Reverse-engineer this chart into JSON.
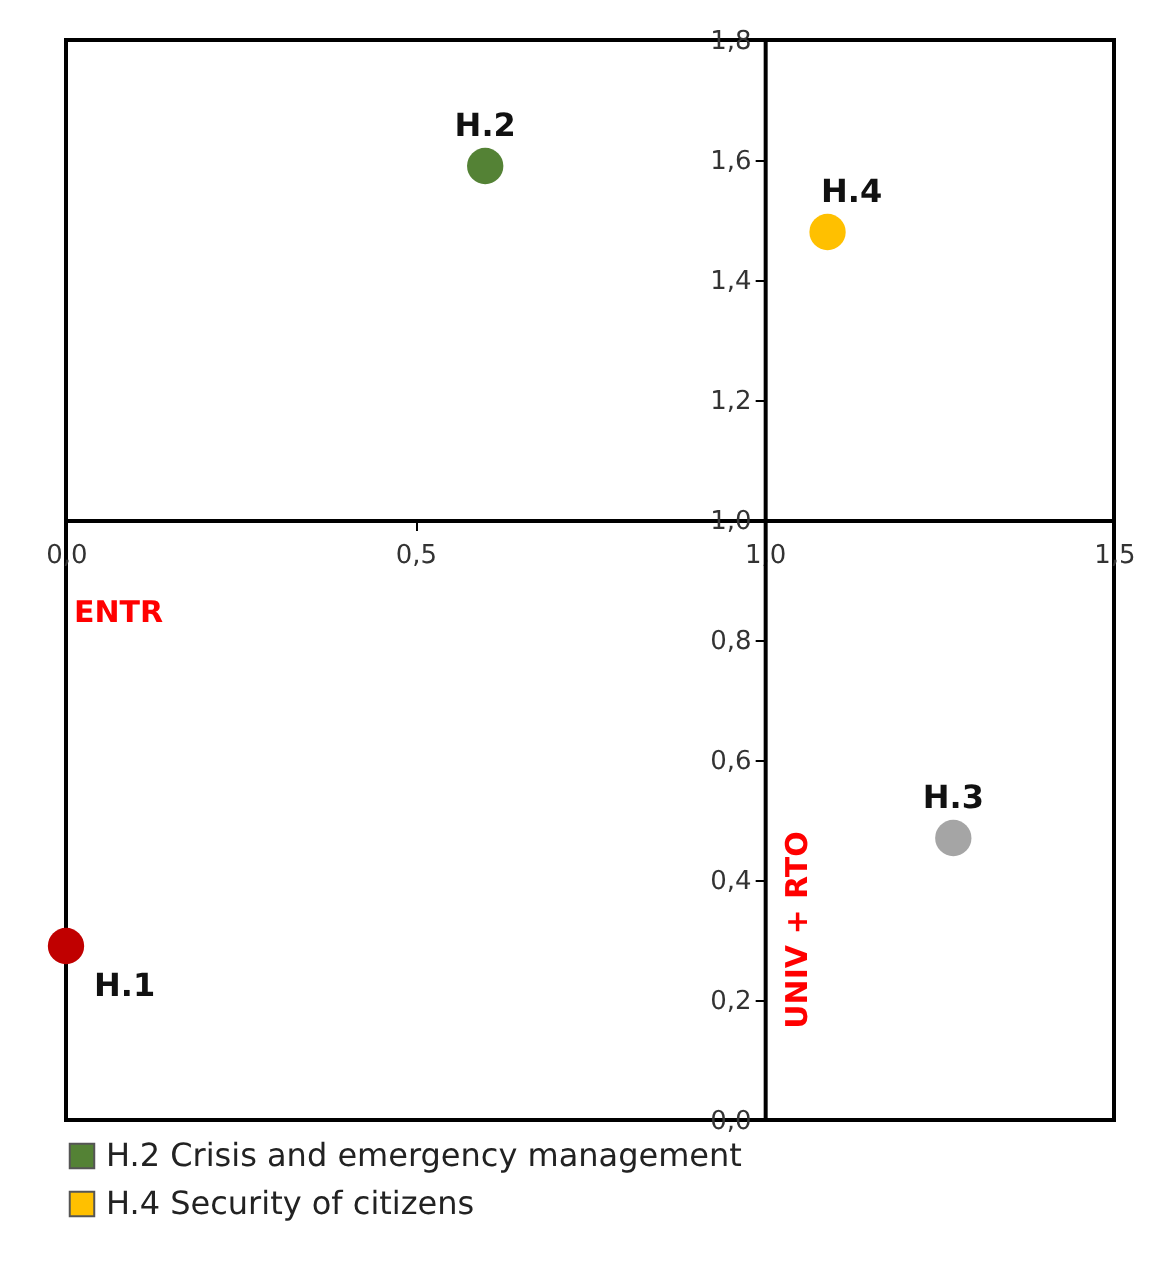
{
  "chart_data": {
    "type": "scatter",
    "marker": "circle",
    "legend": "bottom",
    "grid": false,
    "series": [
      {
        "color": "#c00000",
        "x": [
          0.0
        ],
        "values": [
          0.29
        ]
      },
      {
        "name": "H.2 Crisis and emergency management",
        "color": "#548235",
        "x": [
          0.6
        ],
        "values": [
          1.59
        ]
      },
      {
        "color": "#a5a5a5",
        "x": [
          1.27
        ],
        "values": [
          0.47
        ]
      },
      {
        "name": "H.4 Security of citizens",
        "color": "#ffc000",
        "x": [
          1.09
        ],
        "values": [
          1.48
        ]
      }
    ],
    "xlim": [
      0,
      1.5
    ],
    "xticks": [
      {
        "value": 0,
        "label": "0,0"
      },
      {
        "value": 0.5,
        "label": "0,5"
      },
      {
        "value": 1,
        "label": "1,0"
      },
      {
        "value": 1.5,
        "label": "1,5"
      }
    ],
    "ylim": [
      0,
      1.8
    ],
    "yticks": [
      {
        "value": 0,
        "label": "0,0"
      },
      {
        "value": 0.2,
        "label": "0,2"
      },
      {
        "value": 0.4,
        "label": "0,4"
      },
      {
        "value": 0.6,
        "label": "0,6"
      },
      {
        "value": 0.8,
        "label": "0,8"
      },
      {
        "value": 1,
        "label": "1,0"
      },
      {
        "value": 1.2,
        "label": "1,2"
      },
      {
        "value": 1.4,
        "label": "1,4"
      },
      {
        "value": 1.6,
        "label": "1,6"
      },
      {
        "value": 1.8,
        "label": "1,8"
      }
    ],
    "annotations": [
      {
        "text": "H.1",
        "x": 0.0,
        "y": 0.29
      },
      {
        "text": "H.2",
        "x": 0.6,
        "y": 1.59
      },
      {
        "text": "H.3",
        "x": 1.27,
        "y": 0.47
      },
      {
        "text": "H.4",
        "x": 1.09,
        "y": 1.48
      },
      "ENTR",
      "UNIV + RTO"
    ]
  }
}
